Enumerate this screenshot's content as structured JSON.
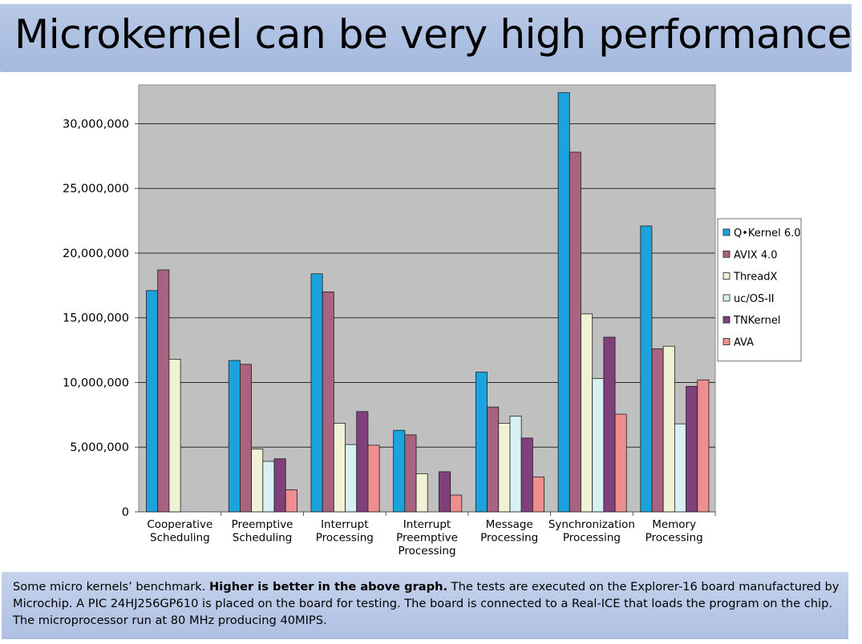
{
  "slide": {
    "title": "Microkernel can be very high performance",
    "caption": {
      "part1": "Some micro kernels’ benchmark. ",
      "bold": "Higher is better in the above graph.",
      "part2": " The tests are executed on the Explorer-16 board manufactured by Microchip. A PIC 24HJ256GP610 is placed on the board for testing. The board is connected to a Real-ICE that loads the program on the chip. The microprocessor run at 80 MHz producing 40MIPS."
    }
  },
  "chart_data": {
    "type": "bar",
    "title": "",
    "xlabel": "",
    "ylabel": "",
    "ylim": [
      0,
      33000000
    ],
    "yticks": [
      0,
      5000000,
      10000000,
      15000000,
      20000000,
      25000000,
      30000000
    ],
    "ytick_labels": [
      "0",
      "5,000,000",
      "10,000,000",
      "15,000,000",
      "20,000,000",
      "25,000,000",
      "30,000,000"
    ],
    "grid": true,
    "legend_position": "right",
    "categories": [
      [
        "Cooperative",
        "Scheduling"
      ],
      [
        "Preemptive",
        "Scheduling"
      ],
      [
        "Interrupt",
        "Processing"
      ],
      [
        "Interrupt",
        "Preemptive",
        "Processing"
      ],
      [
        "Message",
        "Processing"
      ],
      [
        "Synchronization",
        "Processing"
      ],
      [
        "Memory",
        "Processing"
      ]
    ],
    "series": [
      {
        "name": "Q•Kernel 6.0",
        "color": "#1aa3dc",
        "values": [
          17100000,
          11700000,
          18400000,
          6300000,
          10800000,
          32400000,
          22100000
        ]
      },
      {
        "name": "AVIX 4.0",
        "color": "#a7637f",
        "values": [
          18700000,
          11400000,
          17000000,
          5950000,
          8100000,
          27800000,
          12600000
        ]
      },
      {
        "name": "ThreadX",
        "color": "#f1f1d6",
        "values": [
          11800000,
          4850000,
          6850000,
          2950000,
          6850000,
          15300000,
          12800000
        ]
      },
      {
        "name": "uc/OS-II",
        "color": "#d7f0f1",
        "values": [
          null,
          3900000,
          5200000,
          null,
          7400000,
          10300000,
          6800000
        ]
      },
      {
        "name": "TNKernel",
        "color": "#80407b",
        "values": [
          null,
          4100000,
          7750000,
          3100000,
          5700000,
          13500000,
          9700000
        ]
      },
      {
        "name": "AVA",
        "color": "#ef8e8e",
        "values": [
          null,
          1700000,
          5150000,
          1300000,
          2700000,
          7550000,
          10200000
        ]
      }
    ]
  }
}
